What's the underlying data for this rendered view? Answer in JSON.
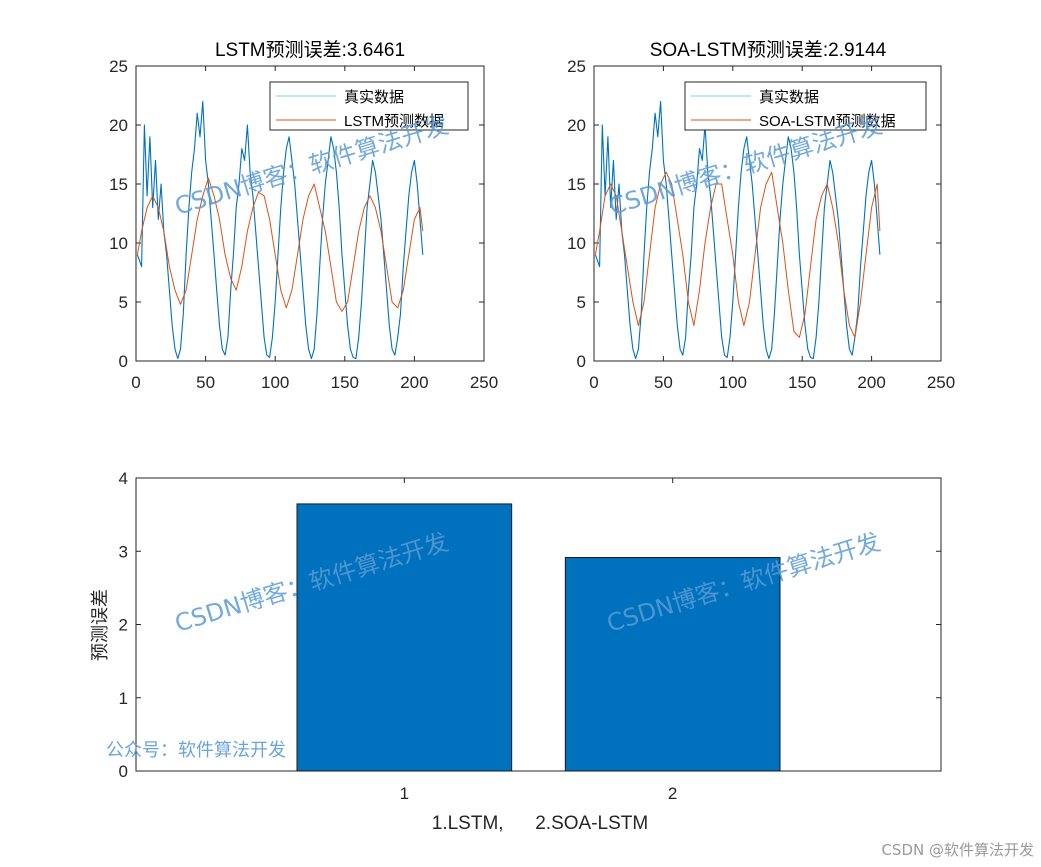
{
  "chart_data": [
    {
      "type": "line",
      "title": "LSTM预测误差:3.6461",
      "xlim": [
        0,
        250
      ],
      "ylim": [
        0,
        25
      ],
      "xticks": [
        0,
        50,
        100,
        150,
        200,
        250
      ],
      "yticks": [
        0,
        5,
        10,
        15,
        20,
        25
      ],
      "legend_placement": "top-right",
      "series": [
        {
          "name": "真实数据",
          "color": "#0072BD",
          "x": [
            1,
            4,
            6,
            8,
            10,
            12,
            14,
            16,
            18,
            20,
            22,
            24,
            26,
            28,
            30,
            32,
            34,
            36,
            38,
            40,
            42,
            44,
            46,
            48,
            50,
            52,
            54,
            56,
            58,
            60,
            62,
            64,
            66,
            68,
            70,
            72,
            74,
            76,
            78,
            80,
            82,
            84,
            86,
            88,
            90,
            92,
            94,
            96,
            98,
            100,
            102,
            104,
            106,
            108,
            110,
            112,
            114,
            116,
            118,
            120,
            122,
            124,
            126,
            128,
            130,
            132,
            134,
            136,
            138,
            140,
            142,
            144,
            146,
            148,
            150,
            152,
            154,
            156,
            158,
            160,
            162,
            164,
            166,
            168,
            170,
            172,
            174,
            176,
            178,
            180,
            182,
            184,
            186,
            188,
            190,
            192,
            194,
            196,
            198,
            200,
            202,
            204,
            206
          ],
          "values": [
            9,
            8,
            20,
            14,
            19,
            13,
            17,
            12,
            15,
            11,
            9,
            6,
            3,
            1,
            0.2,
            1,
            4,
            9,
            13,
            16,
            18,
            21,
            19,
            22,
            17,
            15,
            12,
            9,
            6,
            3,
            1,
            0.5,
            2,
            6,
            9,
            13,
            15,
            18,
            17,
            20,
            16,
            14,
            11,
            8,
            5,
            2,
            0.5,
            0.3,
            2,
            5,
            9,
            13,
            16,
            18,
            19,
            17,
            15,
            12,
            9,
            6,
            3,
            1,
            0.2,
            1,
            4,
            8,
            12,
            15,
            17,
            19,
            18,
            16,
            13,
            9,
            6,
            3,
            1,
            0.3,
            0.2,
            2,
            5,
            9,
            13,
            15,
            17,
            16,
            14,
            12,
            9,
            6,
            3,
            1,
            0.5,
            2,
            4,
            8,
            11,
            14,
            16,
            17,
            15,
            12,
            9
          ]
        },
        {
          "name": "LSTM预测数据",
          "color": "#D95319",
          "x": [
            1,
            4,
            8,
            12,
            16,
            20,
            24,
            28,
            32,
            36,
            40,
            44,
            48,
            52,
            56,
            60,
            64,
            68,
            72,
            76,
            80,
            84,
            88,
            92,
            96,
            100,
            104,
            108,
            112,
            116,
            120,
            124,
            128,
            132,
            136,
            140,
            144,
            148,
            152,
            156,
            160,
            164,
            168,
            172,
            176,
            180,
            184,
            188,
            192,
            196,
            200,
            204,
            206
          ],
          "values": [
            9,
            11,
            13,
            14,
            13,
            11,
            8,
            6,
            4.8,
            6,
            9,
            12,
            14,
            15.5,
            14,
            12,
            9,
            7,
            6,
            8,
            11,
            13,
            14.3,
            14,
            12,
            9,
            6,
            4.5,
            6,
            9,
            12,
            14,
            15,
            13,
            11,
            8,
            5,
            4.2,
            5,
            8,
            11,
            13,
            14,
            13,
            11,
            8,
            5,
            4.5,
            6,
            9,
            12,
            13,
            11
          ]
        }
      ]
    },
    {
      "type": "line",
      "title": "SOA-LSTM预测误差:2.9144",
      "xlim": [
        0,
        250
      ],
      "ylim": [
        0,
        25
      ],
      "xticks": [
        0,
        50,
        100,
        150,
        200,
        250
      ],
      "yticks": [
        0,
        5,
        10,
        15,
        20,
        25
      ],
      "legend_placement": "top-right",
      "series": [
        {
          "name": "真实数据",
          "color": "#0072BD",
          "x": [
            1,
            4,
            6,
            8,
            10,
            12,
            14,
            16,
            18,
            20,
            22,
            24,
            26,
            28,
            30,
            32,
            34,
            36,
            38,
            40,
            42,
            44,
            46,
            48,
            50,
            52,
            54,
            56,
            58,
            60,
            62,
            64,
            66,
            68,
            70,
            72,
            74,
            76,
            78,
            80,
            82,
            84,
            86,
            88,
            90,
            92,
            94,
            96,
            98,
            100,
            102,
            104,
            106,
            108,
            110,
            112,
            114,
            116,
            118,
            120,
            122,
            124,
            126,
            128,
            130,
            132,
            134,
            136,
            138,
            140,
            142,
            144,
            146,
            148,
            150,
            152,
            154,
            156,
            158,
            160,
            162,
            164,
            166,
            168,
            170,
            172,
            174,
            176,
            178,
            180,
            182,
            184,
            186,
            188,
            190,
            192,
            194,
            196,
            198,
            200,
            202,
            204,
            206
          ],
          "values": [
            9,
            8,
            20,
            14,
            19,
            13,
            17,
            12,
            15,
            11,
            9,
            6,
            3,
            1,
            0.2,
            1,
            4,
            9,
            13,
            16,
            18,
            21,
            19,
            22,
            17,
            15,
            12,
            9,
            6,
            3,
            1,
            0.5,
            2,
            6,
            9,
            13,
            15,
            18,
            17,
            20,
            16,
            14,
            11,
            8,
            5,
            2,
            0.5,
            0.3,
            2,
            5,
            9,
            13,
            16,
            18,
            19,
            17,
            15,
            12,
            9,
            6,
            3,
            1,
            0.2,
            1,
            4,
            8,
            12,
            15,
            17,
            19,
            18,
            16,
            13,
            9,
            6,
            3,
            1,
            0.3,
            0.2,
            2,
            5,
            9,
            13,
            15,
            17,
            16,
            14,
            12,
            9,
            6,
            3,
            1,
            0.5,
            2,
            4,
            8,
            11,
            14,
            16,
            17,
            15,
            12,
            9
          ]
        },
        {
          "name": "SOA-LSTM预测数据",
          "color": "#D95319",
          "x": [
            1,
            4,
            8,
            12,
            16,
            20,
            24,
            28,
            32,
            36,
            40,
            44,
            48,
            52,
            56,
            60,
            64,
            68,
            72,
            76,
            80,
            84,
            88,
            92,
            96,
            100,
            104,
            108,
            112,
            116,
            120,
            124,
            128,
            132,
            136,
            140,
            144,
            148,
            152,
            156,
            160,
            164,
            168,
            172,
            176,
            180,
            184,
            188,
            192,
            196,
            200,
            204,
            206
          ],
          "values": [
            9,
            11,
            14,
            15,
            14,
            11,
            8,
            5,
            3,
            5,
            9,
            13,
            15,
            16,
            15,
            12,
            9,
            5,
            3,
            6,
            10,
            13,
            15,
            15,
            12,
            9,
            5,
            3,
            5,
            9,
            13,
            15,
            16,
            13,
            10,
            6,
            2.5,
            2,
            4,
            8,
            12,
            14,
            15,
            13,
            10,
            6,
            3,
            2,
            5,
            9,
            13,
            15,
            11
          ]
        }
      ]
    },
    {
      "type": "bar",
      "categories": [
        "1",
        "2"
      ],
      "values": [
        3.6461,
        2.9144
      ],
      "ylim": [
        0,
        4
      ],
      "yticks": [
        0,
        1,
        2,
        3,
        4
      ],
      "xlim": [
        0,
        3
      ],
      "xlabel": "1.LSTM,      2.SOA-LSTM",
      "ylabel": "预测误差",
      "color": "#0072BD"
    }
  ],
  "watermarks": {
    "blog": "CSDN博客：软件算法开发",
    "official": "公众号：软件算法开发",
    "footer": "CSDN @软件算法开发"
  }
}
